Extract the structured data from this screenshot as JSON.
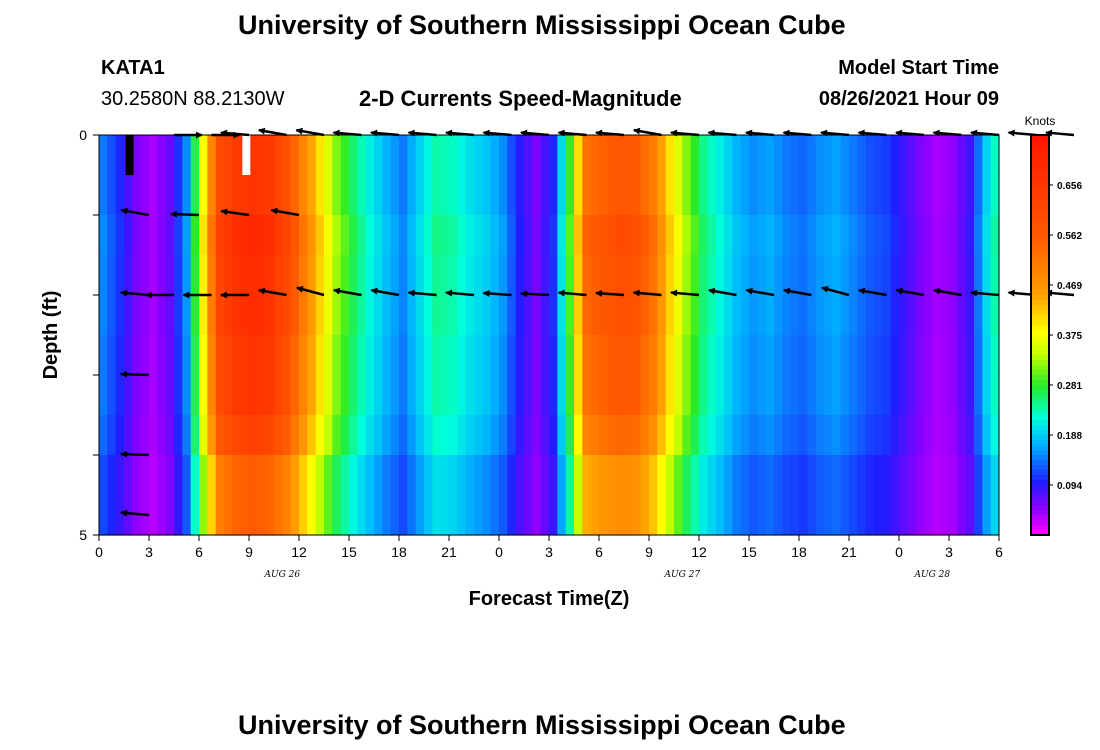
{
  "page": {
    "title_top": "University of Southern Mississippi Ocean Cube",
    "title_bottom": "University of Southern Mississippi Ocean Cube",
    "station_id": "KATA1",
    "station_coords": "30.2580N  88.2130W",
    "plot_title": "2-D Currents Speed-Magnitude",
    "model_label": "Model Start Time",
    "model_time": "08/26/2021 Hour 09"
  },
  "chart_data": {
    "type": "heatmap",
    "subtype": "time-depth current speed with direction vectors",
    "title": "2-D Currents Speed-Magnitude",
    "xlabel": "Forecast Time(Z)",
    "ylabel": "Depth (ft)",
    "x_ticks": [
      "0",
      "3",
      "6",
      "9",
      "12",
      "15",
      "18",
      "21",
      "0",
      "3",
      "6",
      "9",
      "12",
      "15",
      "18",
      "21",
      "0",
      "3",
      "6"
    ],
    "day_labels": [
      {
        "label": "AUG 26",
        "hour": 11
      },
      {
        "label": "AUG 27",
        "hour": 35
      },
      {
        "label": "AUG 28",
        "hour": 50
      }
    ],
    "x_range_hours": [
      0,
      54
    ],
    "y_range_ft": [
      0,
      5
    ],
    "y_ticks": [
      "0",
      "",
      "",
      "",
      "",
      "5"
    ],
    "colorbar": {
      "unit": "Knots",
      "range": [
        0,
        0.75
      ],
      "tick_labels": [
        "0.656",
        "0.562",
        "0.469",
        "0.375",
        "0.281",
        "0.188",
        "0.094"
      ]
    },
    "speed_profile_hours": [
      0,
      1,
      2,
      3,
      4,
      5,
      6,
      7,
      8,
      9,
      10,
      11,
      12,
      13,
      14,
      15,
      16,
      17,
      18,
      19,
      20,
      21,
      22,
      23,
      24,
      25,
      26,
      27,
      28,
      29,
      30,
      31,
      32,
      33,
      34,
      35,
      36,
      37,
      38,
      39,
      40,
      41,
      42,
      43,
      44,
      45,
      46,
      47,
      48,
      49,
      50,
      51,
      52,
      53,
      54
    ],
    "speed_profile_knots": [
      0.15,
      0.11,
      0.06,
      0.04,
      0.07,
      0.16,
      0.4,
      0.63,
      0.68,
      0.7,
      0.68,
      0.62,
      0.52,
      0.42,
      0.33,
      0.27,
      0.22,
      0.18,
      0.15,
      0.2,
      0.25,
      0.24,
      0.21,
      0.19,
      0.16,
      0.1,
      0.06,
      0.11,
      0.3,
      0.55,
      0.58,
      0.6,
      0.59,
      0.53,
      0.42,
      0.33,
      0.26,
      0.22,
      0.18,
      0.16,
      0.17,
      0.15,
      0.14,
      0.16,
      0.17,
      0.15,
      0.13,
      0.12,
      0.09,
      0.06,
      0.04,
      0.05,
      0.09,
      0.2,
      0.28
    ],
    "depth_factors": [
      0.95,
      1.0,
      0.98,
      0.95,
      0.9,
      0.8
    ],
    "vectors": [
      [
        0,
        1,
        0,
        -1
      ],
      [
        1.5,
        0.3,
        0,
        -1
      ],
      [
        2.4,
        0.17,
        0,
        -1
      ],
      [
        3.5,
        0.75,
        0,
        1
      ],
      [
        3,
        2,
        0.8,
        0
      ],
      [
        6,
        2,
        0.25,
        0
      ],
      [
        9,
        2,
        0.25,
        0
      ],
      [
        12,
        2,
        0.25,
        0
      ],
      [
        15,
        2,
        0.25,
        0
      ],
      [
        18,
        2,
        0.25,
        0
      ],
      [
        21,
        2,
        0.25,
        0
      ],
      [
        24,
        2,
        0.25,
        0
      ],
      [
        27,
        2,
        0.25,
        0
      ],
      [
        30,
        2,
        0.25,
        0
      ],
      [
        33,
        2,
        0.25,
        0
      ],
      [
        36,
        2,
        0.25,
        0
      ],
      [
        39,
        2,
        0.25,
        0
      ],
      [
        42,
        2,
        0.25,
        0
      ],
      [
        45,
        2,
        0.25,
        0
      ],
      [
        48,
        2,
        0.25,
        0
      ],
      [
        51,
        2,
        0.25,
        0
      ],
      [
        54,
        2,
        0.25,
        0
      ],
      [
        6,
        3,
        0.25,
        0
      ],
      [
        9,
        3,
        0.25,
        0
      ],
      [
        12,
        3,
        0.25,
        0
      ],
      [
        15,
        3,
        0.25,
        0
      ],
      [
        18,
        3,
        0.25,
        0
      ],
      [
        21,
        3,
        0.25,
        0
      ],
      [
        24,
        3,
        0.25,
        0
      ],
      [
        27,
        3,
        0.25,
        0
      ],
      [
        30,
        3,
        0.25,
        0
      ],
      [
        33,
        3,
        0.25,
        0
      ],
      [
        36,
        3,
        0.25,
        0
      ],
      [
        39,
        3,
        0.25,
        0
      ],
      [
        42,
        3,
        0.25,
        0
      ],
      [
        45,
        3,
        0.25,
        0
      ],
      [
        48,
        3,
        0.25,
        0
      ],
      [
        51,
        3,
        0.25,
        0
      ],
      [
        54,
        3,
        0.25,
        0
      ],
      [
        6,
        4,
        0.25,
        0
      ],
      [
        9,
        4,
        0.25,
        0
      ],
      [
        12,
        4,
        0.25,
        0
      ],
      [
        15,
        4,
        0.25,
        0
      ],
      [
        18,
        4,
        0.25,
        0
      ],
      [
        21,
        4,
        0.25,
        0
      ],
      [
        24,
        4,
        0.25,
        0
      ],
      [
        27,
        4,
        0.25,
        0
      ],
      [
        30,
        4,
        0.25,
        0
      ],
      [
        33,
        4,
        0.25,
        0
      ],
      [
        36,
        4,
        0.25,
        0
      ],
      [
        39,
        4,
        0.25,
        0
      ],
      [
        42,
        4,
        0.25,
        0
      ],
      [
        45,
        4,
        0.25,
        0
      ],
      [
        48,
        4,
        0.25,
        0
      ],
      [
        51,
        4,
        0.25,
        0
      ],
      [
        54,
        4,
        0.25,
        0
      ],
      [
        3,
        4.75,
        0.9,
        0
      ]
    ],
    "vector_rows": [
      {
        "depth_ft": 0.0,
        "angles_deg": [
          0,
          0,
          175,
          170,
          170,
          175,
          175,
          175,
          175,
          175,
          175,
          175,
          175,
          170,
          175,
          175,
          175,
          175,
          175,
          175,
          175,
          175,
          175,
          175,
          175
        ]
      },
      {
        "depth_ft": 2.0,
        "angles_deg": [
          180,
          180,
          180,
          170,
          165,
          170,
          170,
          175,
          175,
          176,
          177,
          175,
          176,
          175,
          175,
          170,
          170,
          170,
          165,
          170,
          170,
          170,
          175,
          175,
          175
        ]
      }
    ]
  }
}
